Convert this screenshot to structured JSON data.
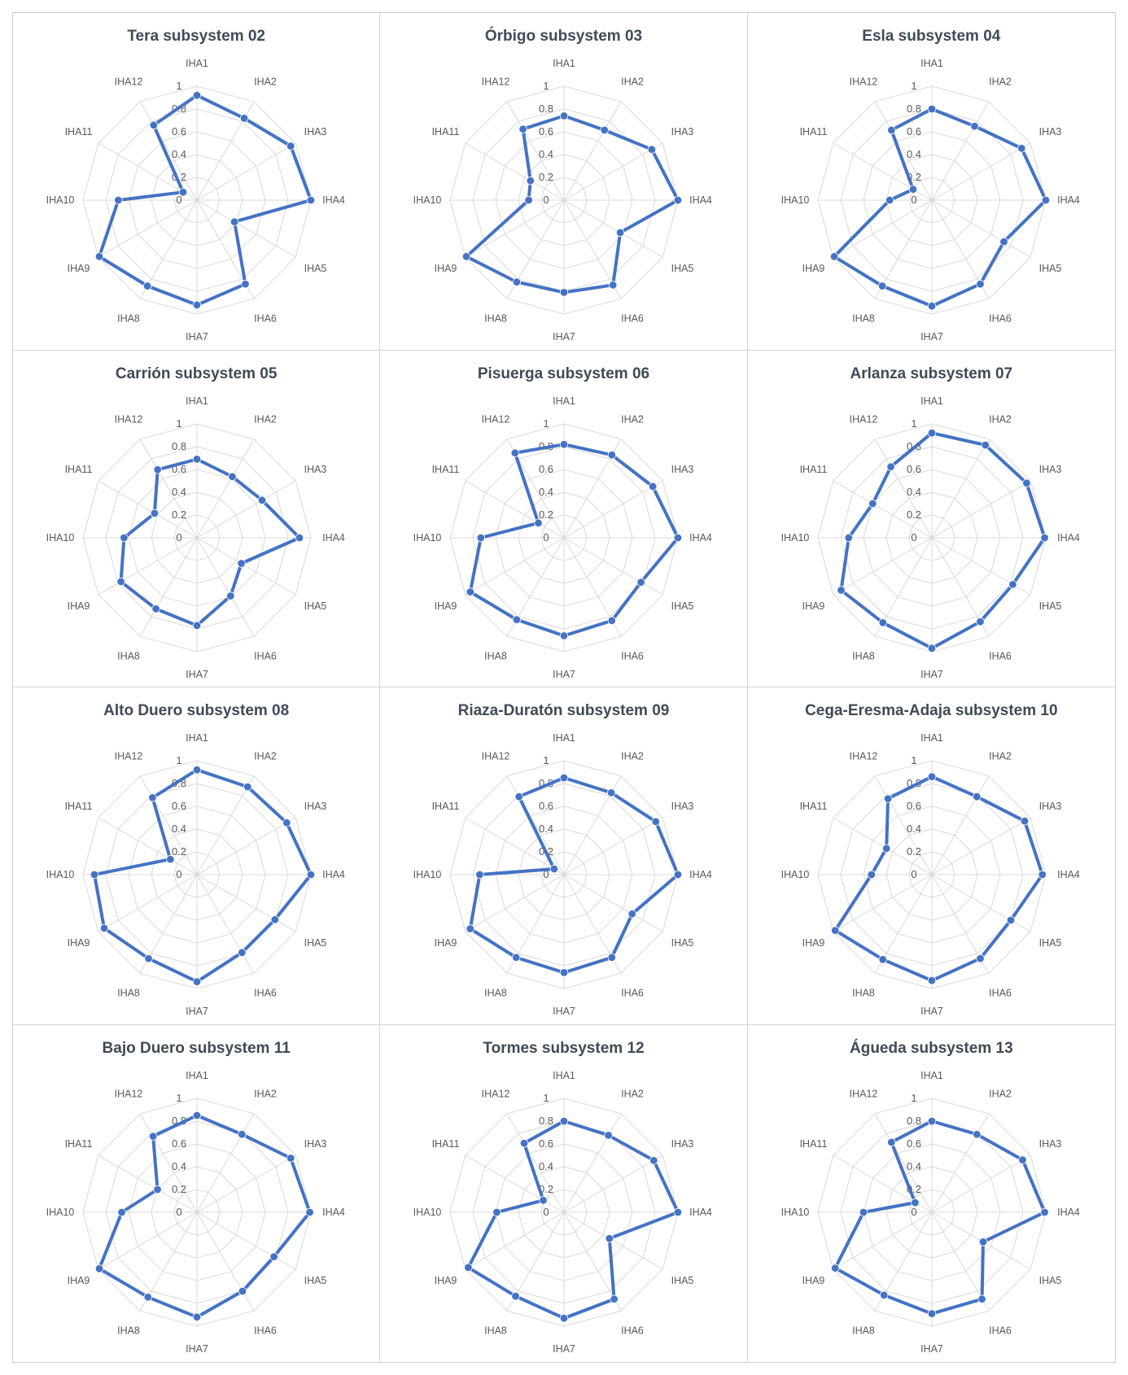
{
  "axes": [
    "IHA1",
    "IHA2",
    "IHA3",
    "IHA4",
    "IHA5",
    "IHA6",
    "IHA7",
    "IHA8",
    "IHA9",
    "IHA10",
    "IHA11",
    "IHA12"
  ],
  "rticks": [
    "0",
    "0.2",
    "0.4",
    "0.6",
    "0.8",
    "1"
  ],
  "colors": {
    "series": "#4472c4",
    "grid": "#d9d9d9",
    "label": "#595959"
  },
  "chart_data": [
    {
      "type": "radar",
      "title": "Tera subsystem 02",
      "rlim": [
        0,
        1
      ],
      "values": [
        0.92,
        0.83,
        0.95,
        1.0,
        0.38,
        0.85,
        0.92,
        0.87,
        0.99,
        0.69,
        0.14,
        0.76
      ]
    },
    {
      "type": "radar",
      "title": "Órbigo subsystem 03",
      "rlim": [
        0,
        1
      ],
      "values": [
        0.74,
        0.71,
        0.89,
        1.0,
        0.57,
        0.86,
        0.81,
        0.83,
        0.99,
        0.31,
        0.34,
        0.72
      ]
    },
    {
      "type": "radar",
      "title": "Esla subsystem 04",
      "rlim": [
        0,
        1
      ],
      "values": [
        0.8,
        0.75,
        0.91,
        1.0,
        0.73,
        0.85,
        0.93,
        0.87,
        0.99,
        0.37,
        0.19,
        0.71
      ]
    },
    {
      "type": "radar",
      "title": "Carrión subsystem 05",
      "rlim": [
        0,
        1
      ],
      "values": [
        0.69,
        0.62,
        0.66,
        0.9,
        0.45,
        0.59,
        0.77,
        0.72,
        0.77,
        0.64,
        0.43,
        0.69
      ]
    },
    {
      "type": "radar",
      "title": "Pisuerga subsystem 06",
      "rlim": [
        0,
        1
      ],
      "values": [
        0.82,
        0.84,
        0.9,
        1.0,
        0.78,
        0.84,
        0.86,
        0.83,
        0.95,
        0.73,
        0.26,
        0.86
      ]
    },
    {
      "type": "radar",
      "title": "Arlanza subsystem 07",
      "rlim": [
        0,
        1
      ],
      "values": [
        0.92,
        0.94,
        0.96,
        0.99,
        0.82,
        0.85,
        0.97,
        0.86,
        0.92,
        0.73,
        0.6,
        0.72
      ]
    },
    {
      "type": "radar",
      "title": "Alto Duero subsystem 08",
      "rlim": [
        0,
        1
      ],
      "values": [
        0.92,
        0.89,
        0.91,
        1.0,
        0.79,
        0.79,
        0.94,
        0.85,
        0.94,
        0.9,
        0.27,
        0.78
      ]
    },
    {
      "type": "radar",
      "title": "Riaza-Duratón subsystem 09",
      "rlim": [
        0,
        1
      ],
      "values": [
        0.85,
        0.83,
        0.93,
        1.0,
        0.69,
        0.84,
        0.86,
        0.84,
        0.95,
        0.74,
        0.1,
        0.79
      ]
    },
    {
      "type": "radar",
      "title": "Cega-Eresma-Adaja subsystem 10",
      "rlim": [
        0,
        1
      ],
      "values": [
        0.86,
        0.79,
        0.94,
        0.97,
        0.8,
        0.85,
        0.93,
        0.86,
        0.98,
        0.53,
        0.46,
        0.77
      ]
    },
    {
      "type": "radar",
      "title": "Bajo Duero subsystem 11",
      "rlim": [
        0,
        1
      ],
      "values": [
        0.85,
        0.79,
        0.95,
        0.99,
        0.78,
        0.8,
        0.92,
        0.86,
        0.99,
        0.66,
        0.4,
        0.77
      ]
    },
    {
      "type": "radar",
      "title": "Tormes subsystem 12",
      "rlim": [
        0,
        1
      ],
      "values": [
        0.8,
        0.78,
        0.91,
        1.0,
        0.46,
        0.88,
        0.93,
        0.85,
        0.97,
        0.59,
        0.21,
        0.7
      ]
    },
    {
      "type": "radar",
      "title": "Águeda subsystem 13",
      "rlim": [
        0,
        1
      ],
      "values": [
        0.8,
        0.79,
        0.92,
        0.99,
        0.52,
        0.88,
        0.89,
        0.84,
        0.98,
        0.6,
        0.17,
        0.71
      ]
    }
  ]
}
